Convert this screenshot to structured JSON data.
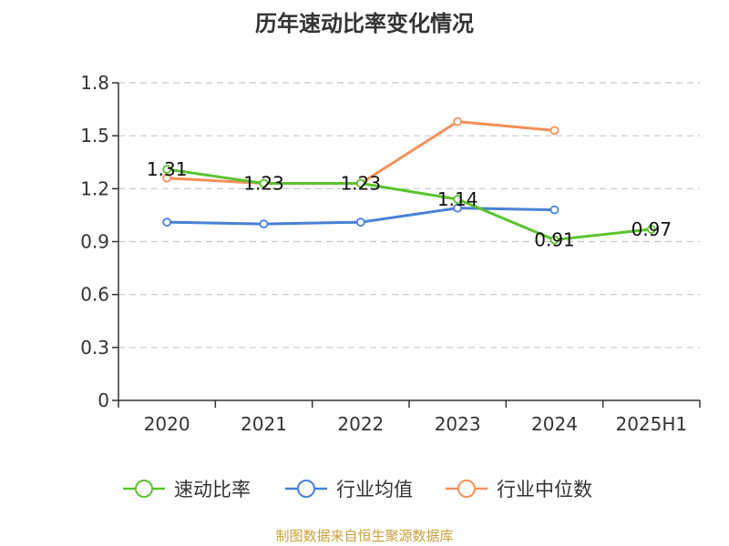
{
  "chart_data": {
    "type": "line",
    "title": "历年速动比率变化情况",
    "categories": [
      "2020",
      "2021",
      "2022",
      "2023",
      "2024",
      "2025H1"
    ],
    "yticks": [
      "0",
      "0.3",
      "0.6",
      "0.9",
      "1.2",
      "1.5",
      "1.8"
    ],
    "ylim": [
      0,
      1.8
    ],
    "grid": true,
    "legend_position": "bottom",
    "series": [
      {
        "name": "速动比率",
        "color": "#5cc22f",
        "values": [
          1.31,
          1.23,
          1.23,
          1.14,
          0.91,
          0.97
        ],
        "labels": [
          "1.31",
          "1.23",
          "1.23",
          "1.14",
          "0.91",
          "0.97"
        ]
      },
      {
        "name": "行业均值",
        "color": "#4a7fd6",
        "values": [
          1.01,
          1.0,
          1.01,
          1.09,
          1.08,
          null
        ]
      },
      {
        "name": "行业中位数",
        "color": "#f5905a",
        "values": [
          1.26,
          1.23,
          1.23,
          1.58,
          1.53,
          null
        ]
      }
    ]
  },
  "source": "制图数据来自恒生聚源数据库"
}
